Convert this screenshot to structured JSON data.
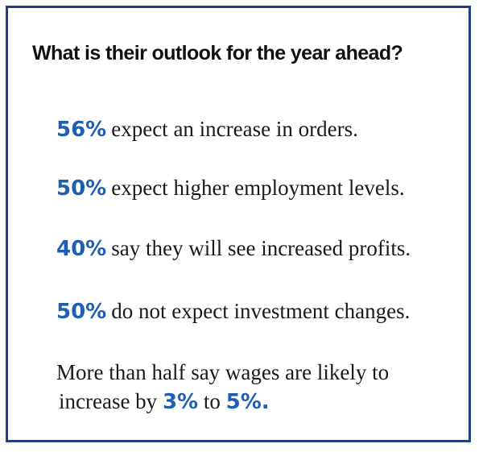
{
  "heading": "What is their outlook for the year ahead?",
  "accent_color": "#1e5fb2",
  "border_color": "#1f3f86",
  "stats": [
    {
      "percent": "56%",
      "text": "expect an increase in orders."
    },
    {
      "percent": "50%",
      "text": "expect higher employment levels."
    },
    {
      "percent": "40%",
      "text": "say they will see increased profits."
    },
    {
      "percent": "50%",
      "text": "do not expect investment changes."
    }
  ],
  "wages": {
    "line1": "More than half say wages are likely to",
    "prefix": "increase by ",
    "low": "3%",
    "middle": " to ",
    "high": "5%."
  }
}
